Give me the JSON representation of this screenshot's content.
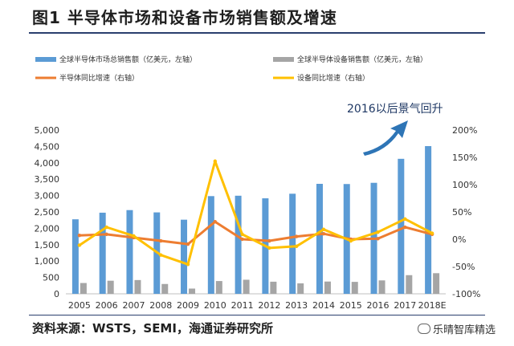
{
  "header": {
    "title": "图1  半导体市场和设备市场销售额及增速"
  },
  "source": {
    "text": "资料来源：WSTS，SEMI，海通证券研究所"
  },
  "watermark": {
    "text": "乐晴智库精选"
  },
  "annotation": {
    "text": "2016以后景气回升"
  },
  "colors": {
    "market_bar": "#5b9bd5",
    "equipment_bar": "#a5a5a5",
    "market_growth": "#ed7d31",
    "equipment_growth": "#ffc000",
    "arrow": "#2e75b6"
  },
  "chart_data": {
    "type": "bar",
    "categories": [
      "2005",
      "2006",
      "2007",
      "2008",
      "2009",
      "2010",
      "2011",
      "2012",
      "2013",
      "2014",
      "2015",
      "2016",
      "2017",
      "2018E"
    ],
    "series": [
      {
        "name": "全球半导体市场总销售额（亿美元，左轴）",
        "type": "bar",
        "axis": "left",
        "values": [
          2275,
          2477,
          2556,
          2486,
          2263,
          2983,
          2995,
          2916,
          3056,
          3358,
          3352,
          3389,
          4122,
          4510
        ]
      },
      {
        "name": "全球半导体设备销售额（亿美元，左轴）",
        "type": "bar",
        "axis": "left",
        "values": [
          330,
          400,
          420,
          300,
          160,
          390,
          430,
          370,
          320,
          375,
          365,
          410,
          570,
          630
        ]
      },
      {
        "name": "半导体同比增速（右轴）",
        "type": "line",
        "axis": "right",
        "values": [
          7,
          9,
          3,
          -3,
          -9,
          32,
          0,
          -3,
          5,
          10,
          0,
          1,
          22,
          9
        ]
      },
      {
        "name": "设备同比增速（右轴）",
        "type": "line",
        "axis": "right",
        "values": [
          -11,
          22,
          6,
          -29,
          -46,
          143,
          9,
          -16,
          -13,
          18,
          -3,
          13,
          37,
          11
        ]
      }
    ],
    "left_axis": {
      "min": 0,
      "max": 5000,
      "ticks": [
        "0",
        "500",
        "1,000",
        "1,500",
        "2,000",
        "2,500",
        "3,000",
        "3,500",
        "4,000",
        "4,500",
        "5,000"
      ]
    },
    "right_axis": {
      "min": -100,
      "max": 200,
      "ticks": [
        "-100%",
        "-50%",
        "0%",
        "50%",
        "100%",
        "150%",
        "200%"
      ]
    },
    "legend_position": "top"
  }
}
